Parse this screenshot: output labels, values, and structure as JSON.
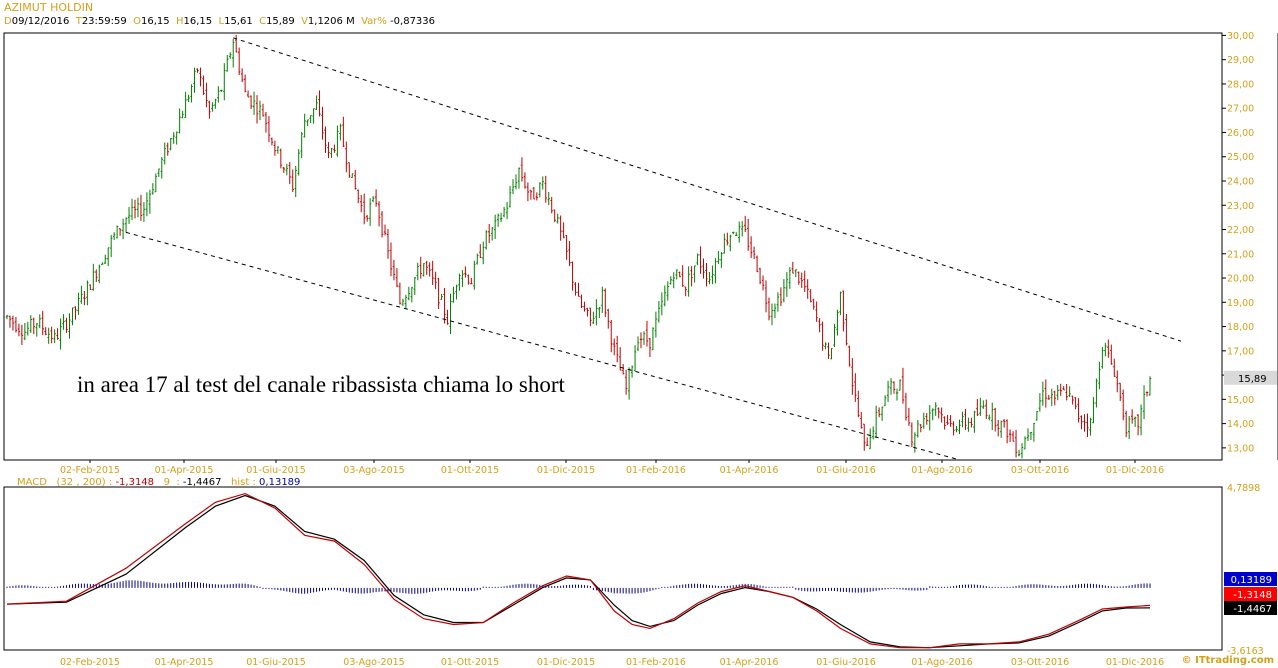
{
  "header": {
    "title": "AZIMUT HOLDIN",
    "d_key": "D",
    "d_val": "09/12/2016",
    "t_key": "T",
    "t_val": "23:59:59",
    "o_key": "O",
    "o_val": "16,15",
    "h_key": "H",
    "h_val": "16,15",
    "l_key": "L",
    "l_val": "15,61",
    "c_key": "C",
    "c_val": "15,89",
    "v_key": "V",
    "v_val": "1,1206 M",
    "var_key": "Var%",
    "var_val": "-0,87336"
  },
  "annotation": "in area 17 al test del canale ribassista chiama lo short",
  "watermark": "© ITtrading.com",
  "macd_header": {
    "name": "MACD",
    "params": "(32 , 200)",
    "sep": ":",
    "macd_val": "-1,3148",
    "signal_period": "9",
    "signal_val": "-1,4467",
    "hist_key": "hist",
    "hist_val": "0,13189"
  },
  "colors": {
    "up": "#008000",
    "down": "#c00000",
    "axis": "#000000",
    "label": "#d4a017",
    "macd": "#c00000",
    "signal": "#000000",
    "hist": "#00008b"
  },
  "chart_data": [
    {
      "type": "candlestick",
      "title": "AZIMUT HOLDIN",
      "x_ticks": [
        "02-Feb-2015",
        "01-Apr-2015",
        "01-Giu-2015",
        "03-Ago-2015",
        "01-Ott-2015",
        "01-Dic-2015",
        "01-Feb-2016",
        "01-Apr-2016",
        "01-Giu-2016",
        "01-Ago-2016",
        "03-Ott-2016",
        "01-Dic-2016"
      ],
      "y_ticks": [
        "30,00",
        "29,00",
        "28,00",
        "27,00",
        "26,00",
        "25,00",
        "24,00",
        "23,00",
        "22,00",
        "21,00",
        "20,00",
        "19,00",
        "18,00",
        "17,00",
        "16,00",
        "15,00",
        "14,00",
        "13,00"
      ],
      "ylim": [
        12.5,
        30.1
      ],
      "last_price_label": "15,89",
      "trend_points": [
        [
          0,
          18.4
        ],
        [
          6,
          17.8
        ],
        [
          10,
          18.2
        ],
        [
          16,
          17.5
        ],
        [
          22,
          18.5
        ],
        [
          28,
          19.8
        ],
        [
          34,
          21.3
        ],
        [
          40,
          22.5
        ],
        [
          46,
          22.9
        ],
        [
          52,
          24.8
        ],
        [
          56,
          26.0
        ],
        [
          60,
          27.2
        ],
        [
          64,
          28.6
        ],
        [
          68,
          26.8
        ],
        [
          72,
          27.8
        ],
        [
          76,
          29.8
        ],
        [
          80,
          27.6
        ],
        [
          86,
          26.8
        ],
        [
          90,
          25.4
        ],
        [
          96,
          23.8
        ],
        [
          100,
          26.5
        ],
        [
          104,
          27.1
        ],
        [
          108,
          25.0
        ],
        [
          112,
          26.0
        ],
        [
          116,
          24.0
        ],
        [
          120,
          22.6
        ],
        [
          124,
          23.2
        ],
        [
          128,
          21.0
        ],
        [
          132,
          19.0
        ],
        [
          136,
          19.8
        ],
        [
          140,
          20.6
        ],
        [
          144,
          19.6
        ],
        [
          148,
          18.3
        ],
        [
          152,
          20.4
        ],
        [
          156,
          19.9
        ],
        [
          160,
          21.5
        ],
        [
          164,
          22.1
        ],
        [
          168,
          23.0
        ],
        [
          172,
          24.5
        ],
        [
          176,
          23.3
        ],
        [
          180,
          23.9
        ],
        [
          184,
          22.6
        ],
        [
          188,
          21.0
        ],
        [
          192,
          19.0
        ],
        [
          196,
          18.2
        ],
        [
          200,
          19.3
        ],
        [
          204,
          17.0
        ],
        [
          208,
          15.4
        ],
        [
          212,
          17.6
        ],
        [
          216,
          17.4
        ],
        [
          220,
          18.9
        ],
        [
          224,
          20.3
        ],
        [
          228,
          19.7
        ],
        [
          232,
          20.8
        ],
        [
          236,
          20.0
        ],
        [
          240,
          21.3
        ],
        [
          244,
          22.0
        ],
        [
          248,
          21.8
        ],
        [
          252,
          20.5
        ],
        [
          256,
          18.7
        ],
        [
          260,
          19.3
        ],
        [
          264,
          20.4
        ],
        [
          268,
          19.6
        ],
        [
          272,
          18.3
        ],
        [
          276,
          16.6
        ],
        [
          280,
          19.3
        ],
        [
          284,
          15.7
        ],
        [
          288,
          13.0
        ],
        [
          292,
          14.2
        ],
        [
          296,
          15.4
        ],
        [
          300,
          15.6
        ],
        [
          304,
          13.5
        ],
        [
          308,
          14.2
        ],
        [
          312,
          14.8
        ],
        [
          316,
          13.9
        ],
        [
          320,
          14.0
        ],
        [
          324,
          14.1
        ],
        [
          328,
          14.7
        ],
        [
          332,
          14.2
        ],
        [
          336,
          13.7
        ],
        [
          340,
          12.9
        ],
        [
          344,
          13.9
        ],
        [
          348,
          15.3
        ],
        [
          352,
          15.1
        ],
        [
          356,
          15.3
        ],
        [
          360,
          14.3
        ],
        [
          364,
          14.0
        ],
        [
          368,
          17.3
        ],
        [
          372,
          16.2
        ],
        [
          376,
          13.9
        ],
        [
          380,
          14.0
        ],
        [
          384,
          15.9
        ]
      ],
      "channel_upper": [
        [
          76,
          29.9
        ],
        [
          380,
          17.4
        ]
      ],
      "channel_lower": [
        [
          40,
          22.5
        ],
        [
          290,
          12.5
        ]
      ]
    },
    {
      "type": "line",
      "title": "MACD",
      "x_ticks": [
        "02-Feb-2015",
        "01-Apr-2015",
        "01-Giu-2015",
        "03-Ago-2015",
        "01-Ott-2015",
        "01-Dic-2015",
        "01-Feb-2016",
        "01-Apr-2016",
        "01-Giu-2016",
        "01-Ago-2016",
        "03-Ott-2016",
        "01-Dic-2016"
      ],
      "y_ticks": [
        "4,7898",
        "-3,6163"
      ],
      "ylim": [
        -3.6163,
        4.7898
      ],
      "badges": [
        "0,13189",
        "-1,3148",
        "-1,4467"
      ],
      "series": [
        {
          "name": "MACD",
          "points": [
            [
              0,
              -1.25
            ],
            [
              20,
              -1.1
            ],
            [
              40,
              0.6
            ],
            [
              60,
              2.9
            ],
            [
              70,
              4.0
            ],
            [
              80,
              4.45
            ],
            [
              90,
              3.7
            ],
            [
              100,
              2.3
            ],
            [
              110,
              2.0
            ],
            [
              120,
              0.8
            ],
            [
              130,
              -1.0
            ],
            [
              140,
              -2.0
            ],
            [
              150,
              -2.3
            ],
            [
              160,
              -2.2
            ],
            [
              170,
              -1.2
            ],
            [
              180,
              -0.3
            ],
            [
              188,
              0.2
            ],
            [
              196,
              0.0
            ],
            [
              204,
              -1.6
            ],
            [
              210,
              -2.3
            ],
            [
              216,
              -2.5
            ],
            [
              224,
              -2.0
            ],
            [
              232,
              -1.2
            ],
            [
              240,
              -0.6
            ],
            [
              248,
              -0.3
            ],
            [
              256,
              -0.6
            ],
            [
              264,
              -0.9
            ],
            [
              272,
              -1.6
            ],
            [
              280,
              -2.5
            ],
            [
              290,
              -3.3
            ],
            [
              300,
              -3.5
            ],
            [
              310,
              -3.5
            ],
            [
              320,
              -3.3
            ],
            [
              330,
              -3.3
            ],
            [
              340,
              -3.2
            ],
            [
              350,
              -2.8
            ],
            [
              360,
              -2.1
            ],
            [
              368,
              -1.5
            ],
            [
              376,
              -1.4
            ],
            [
              384,
              -1.3148
            ]
          ]
        },
        {
          "name": "Signal",
          "points": [
            [
              0,
              -1.25
            ],
            [
              20,
              -1.15
            ],
            [
              40,
              0.3
            ],
            [
              60,
              2.7
            ],
            [
              70,
              3.8
            ],
            [
              80,
              4.35
            ],
            [
              90,
              3.8
            ],
            [
              100,
              2.5
            ],
            [
              110,
              2.1
            ],
            [
              120,
              1.0
            ],
            [
              130,
              -0.8
            ],
            [
              140,
              -1.8
            ],
            [
              150,
              -2.2
            ],
            [
              160,
              -2.2
            ],
            [
              170,
              -1.3
            ],
            [
              180,
              -0.4
            ],
            [
              188,
              0.1
            ],
            [
              196,
              0.0
            ],
            [
              204,
              -1.3
            ],
            [
              210,
              -2.1
            ],
            [
              216,
              -2.4
            ],
            [
              224,
              -2.1
            ],
            [
              232,
              -1.3
            ],
            [
              240,
              -0.7
            ],
            [
              248,
              -0.4
            ],
            [
              256,
              -0.6
            ],
            [
              264,
              -0.9
            ],
            [
              272,
              -1.5
            ],
            [
              280,
              -2.3
            ],
            [
              290,
              -3.2
            ],
            [
              300,
              -3.45
            ],
            [
              310,
              -3.5
            ],
            [
              320,
              -3.4
            ],
            [
              330,
              -3.3
            ],
            [
              340,
              -3.25
            ],
            [
              350,
              -2.9
            ],
            [
              360,
              -2.2
            ],
            [
              368,
              -1.6
            ],
            [
              376,
              -1.45
            ],
            [
              384,
              -1.4467
            ]
          ]
        }
      ],
      "histogram_amplitude": 0.35
    }
  ]
}
